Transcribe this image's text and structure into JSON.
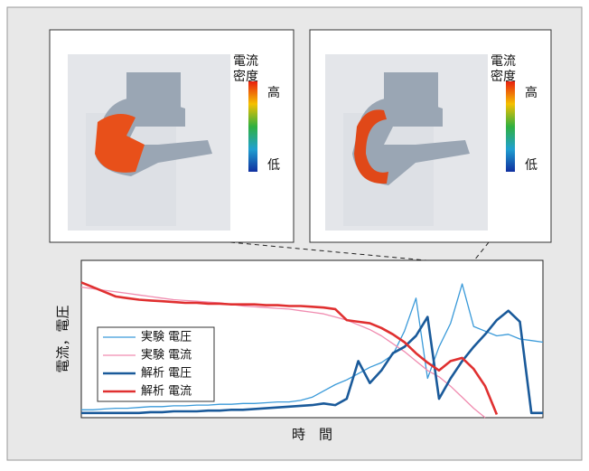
{
  "chart_data": {
    "type": "line",
    "y_label": "電流，電圧",
    "x_label": "時　間",
    "xlim": [
      0,
      100
    ],
    "ylim": [
      0,
      100
    ],
    "x": [
      0,
      2.5,
      5,
      7.5,
      10,
      12.5,
      15,
      17.5,
      20,
      22.5,
      25,
      27.5,
      30,
      32.5,
      35,
      37.5,
      40,
      42.5,
      45,
      47.5,
      50,
      52.5,
      55,
      57.5,
      60,
      62.5,
      65,
      67.5,
      70,
      72.5,
      75,
      77.5,
      80,
      82.5,
      85,
      87.5,
      90,
      92.5,
      95,
      97.5,
      100
    ],
    "series": [
      {
        "name": "実験 電圧",
        "color": "#3a9ad9",
        "width": 1.3,
        "values": [
          5,
          5,
          5.5,
          6,
          6,
          6.5,
          7,
          7,
          7.5,
          7.5,
          8,
          8,
          8.5,
          8.5,
          9,
          9,
          9.5,
          10,
          10,
          11,
          13,
          17,
          21,
          24,
          28,
          32,
          35,
          40,
          55,
          76,
          25,
          45,
          60,
          85,
          58,
          55,
          52,
          53,
          50,
          49,
          48
        ]
      },
      {
        "name": "実験 電流",
        "color": "#f08cb0",
        "width": 1.3,
        "values": [
          83,
          82,
          81,
          80,
          79,
          78,
          77,
          76,
          75,
          74.5,
          74,
          73.5,
          73,
          72,
          71,
          70.5,
          70,
          69.5,
          69,
          68,
          67,
          66,
          64,
          62,
          59,
          56,
          52,
          47,
          42,
          36,
          30,
          26,
          20,
          13,
          6,
          0,
          null,
          null,
          null,
          null,
          null
        ]
      },
      {
        "name": "解析 電圧",
        "color": "#1a5a9a",
        "width": 2.6,
        "values": [
          3,
          3,
          3,
          3,
          3,
          3,
          3.5,
          3.5,
          4,
          4,
          4,
          4.5,
          4.5,
          5,
          5,
          5.5,
          6,
          6.5,
          7,
          7.5,
          8,
          9,
          8,
          12,
          36,
          22,
          30,
          41,
          45,
          52,
          64,
          12,
          25,
          36,
          45,
          53,
          62,
          68,
          61,
          3,
          3
        ]
      },
      {
        "name": "解析 電流",
        "color": "#e03030",
        "width": 2.6,
        "values": [
          86,
          83,
          80,
          77,
          76,
          75,
          74.5,
          74,
          73.5,
          73,
          73,
          72.5,
          72.5,
          72,
          72,
          72,
          71.5,
          71.5,
          71,
          71,
          70.5,
          70,
          69,
          62,
          61,
          60,
          57,
          53,
          48,
          41,
          35,
          30,
          36,
          38,
          31,
          20,
          2,
          null,
          null,
          null,
          null
        ]
      }
    ]
  },
  "panels": [
    {
      "legend_title": [
        "電流",
        "密度"
      ],
      "high": "高",
      "low": "低"
    },
    {
      "legend_title": [
        "電流",
        "密度"
      ],
      "high": "高",
      "low": "低"
    }
  ]
}
